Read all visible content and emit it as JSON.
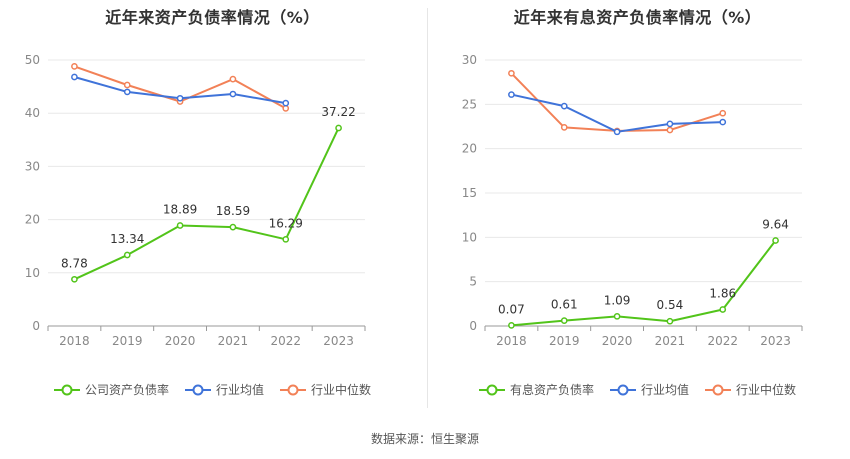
{
  "source_text": "数据来源：恒生聚源",
  "chart_data": [
    {
      "type": "line",
      "title": "近年来资产负债率情况（%）",
      "categories": [
        "2018",
        "2019",
        "2020",
        "2021",
        "2022",
        "2023"
      ],
      "ylim": [
        0,
        50
      ],
      "yticks": [
        "0",
        "10",
        "20",
        "30",
        "40",
        "50"
      ],
      "grid": true,
      "legend_position": "bottom",
      "series": [
        {
          "name": "公司资产负债率",
          "color": "#52c41a",
          "values": [
            8.78,
            13.34,
            18.89,
            18.59,
            16.29,
            37.22
          ],
          "labels": [
            "8.78",
            "13.34",
            "18.89",
            "18.59",
            "16.29",
            "37.22"
          ]
        },
        {
          "name": "行业均值",
          "color": "#3f73d9",
          "values": [
            46.8,
            44.0,
            42.8,
            43.6,
            41.9,
            null
          ]
        },
        {
          "name": "行业中位数",
          "color": "#f28157",
          "values": [
            48.8,
            45.3,
            42.2,
            46.4,
            40.9,
            null
          ]
        }
      ]
    },
    {
      "type": "line",
      "title": "近年来有息资产负债率情况（%）",
      "categories": [
        "2018",
        "2019",
        "2020",
        "2021",
        "2022",
        "2023"
      ],
      "ylim": [
        0,
        30
      ],
      "yticks": [
        "0",
        "5",
        "10",
        "15",
        "20",
        "25",
        "30"
      ],
      "grid": true,
      "legend_position": "bottom",
      "series": [
        {
          "name": "有息资产负债率",
          "color": "#52c41a",
          "values": [
            0.07,
            0.61,
            1.09,
            0.54,
            1.86,
            9.64
          ],
          "labels": [
            "0.07",
            "0.61",
            "1.09",
            "0.54",
            "1.86",
            "9.64"
          ]
        },
        {
          "name": "行业均值",
          "color": "#3f73d9",
          "values": [
            26.1,
            24.8,
            21.9,
            22.8,
            23.0,
            null
          ]
        },
        {
          "name": "行业中位数",
          "color": "#f28157",
          "values": [
            28.5,
            22.4,
            22.0,
            22.1,
            24.0,
            null
          ]
        }
      ]
    }
  ]
}
